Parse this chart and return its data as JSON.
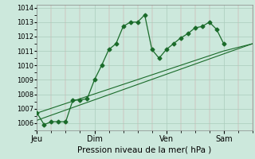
{
  "background_color": "#cce8dc",
  "grid_color": "#aaccbb",
  "line_color": "#1a6b2a",
  "marker_color": "#1a6b2a",
  "xlabel": "Pression niveau de la mer( hPa )",
  "ylim": [
    1005.5,
    1014.2
  ],
  "yticks": [
    1006,
    1007,
    1008,
    1009,
    1010,
    1011,
    1012,
    1013,
    1014
  ],
  "day_labels": [
    "Jeu",
    "Dim",
    "Ven",
    "Sam"
  ],
  "day_positions": [
    0,
    96,
    216,
    312
  ],
  "xlim": [
    0,
    360
  ],
  "minor_xtick_interval": 24,
  "series1": [
    [
      0,
      1006.7
    ],
    [
      12,
      1005.9
    ],
    [
      24,
      1006.1
    ],
    [
      36,
      1006.1
    ],
    [
      48,
      1006.1
    ],
    [
      60,
      1007.6
    ],
    [
      72,
      1007.6
    ],
    [
      84,
      1007.7
    ],
    [
      96,
      1009.0
    ],
    [
      108,
      1010.0
    ],
    [
      120,
      1011.1
    ],
    [
      132,
      1011.5
    ],
    [
      144,
      1012.7
    ],
    [
      156,
      1013.0
    ],
    [
      168,
      1013.0
    ],
    [
      180,
      1013.5
    ],
    [
      192,
      1011.1
    ],
    [
      204,
      1010.5
    ],
    [
      216,
      1011.1
    ],
    [
      228,
      1011.5
    ],
    [
      240,
      1011.9
    ],
    [
      252,
      1012.2
    ],
    [
      264,
      1012.6
    ],
    [
      276,
      1012.7
    ],
    [
      288,
      1013.0
    ],
    [
      300,
      1012.5
    ],
    [
      312,
      1011.5
    ]
  ],
  "series2": [
    [
      0,
      1006.7
    ],
    [
      312,
      1011.0
    ],
    [
      360,
      1011.5
    ]
  ],
  "series3": [
    [
      0,
      1006.2
    ],
    [
      312,
      1010.8
    ],
    [
      360,
      1011.5
    ]
  ]
}
